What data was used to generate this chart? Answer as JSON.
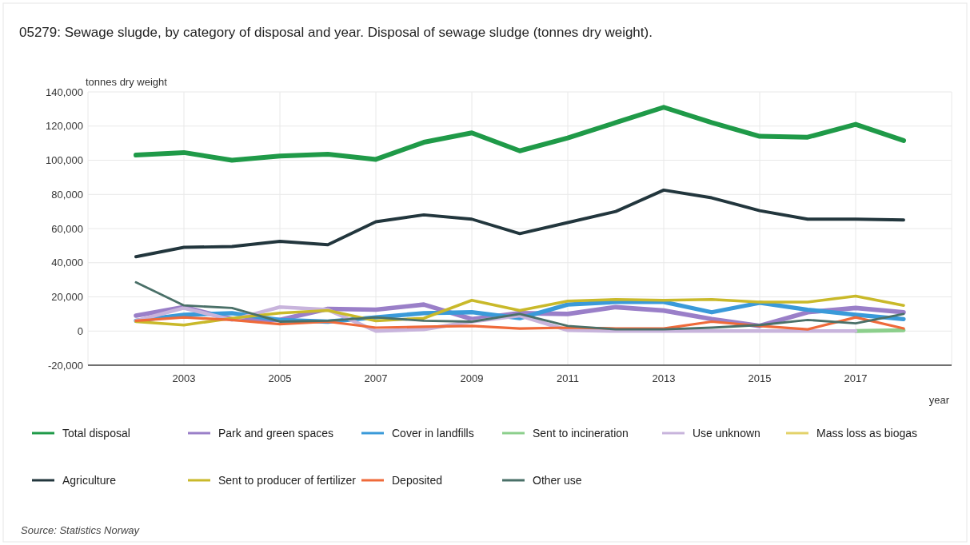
{
  "chart_data": {
    "type": "line",
    "title": "05279: Sewage slugde, by category of disposal and year. Disposal of sewage sludge (tonnes dry weight).",
    "ylabel": "tonnes dry weight",
    "xlabel": "year",
    "annotations": [
      "Source: Statistics Norway"
    ],
    "x": [
      2002,
      2003,
      2004,
      2005,
      2006,
      2007,
      2008,
      2009,
      2010,
      2011,
      2012,
      2013,
      2014,
      2015,
      2016,
      2017,
      2018
    ],
    "xlim": [
      2001,
      2019
    ],
    "xticks": [
      2003,
      2005,
      2007,
      2009,
      2011,
      2013,
      2015,
      2017
    ],
    "ylim": [
      -20000,
      140000
    ],
    "yticks": [
      {
        "value": -20000,
        "label": "-20,000"
      },
      {
        "value": 0,
        "label": "0"
      },
      {
        "value": 20000,
        "label": "20,000"
      },
      {
        "value": 40000,
        "label": "40,000"
      },
      {
        "value": 60000,
        "label": "60,000"
      },
      {
        "value": 80000,
        "label": "80,000"
      },
      {
        "value": 100000,
        "label": "100,000"
      },
      {
        "value": 120000,
        "label": "120,000"
      },
      {
        "value": 140000,
        "label": "140,000"
      }
    ],
    "grid": true,
    "legend": "bottom",
    "marker": "none",
    "line_style": "solid",
    "series": [
      {
        "name": "Total disposal",
        "color": "#1f9a48",
        "values": [
          103000,
          104500,
          100000,
          102500,
          103500,
          100500,
          110500,
          116000,
          105500,
          113000,
          122000,
          131000,
          122000,
          114000,
          113500,
          121000,
          111500
        ]
      },
      {
        "name": "Park and green spaces",
        "color": "#9a7fc8",
        "values": [
          9000,
          14000,
          7000,
          6500,
          13000,
          12500,
          15500,
          7000,
          10500,
          10000,
          14000,
          12000,
          7000,
          3000,
          11000,
          13500,
          11000
        ]
      },
      {
        "name": "Cover in landfills",
        "color": "#3a9ad9",
        "values": [
          6000,
          9500,
          10500,
          6500,
          5500,
          8000,
          10500,
          11000,
          7500,
          15500,
          17000,
          17000,
          11000,
          16500,
          12500,
          9500,
          7000
        ]
      },
      {
        "name": "Sent to incineration",
        "color": "#8ccf8c",
        "values": [
          null,
          null,
          null,
          null,
          null,
          null,
          null,
          null,
          null,
          null,
          null,
          null,
          null,
          null,
          null,
          0,
          500
        ]
      },
      {
        "name": "Use unknown",
        "color": "#c8b4dc",
        "values": [
          6000,
          13500,
          6500,
          14000,
          12500,
          0,
          1000,
          5500,
          9000,
          500,
          0,
          0,
          0,
          0,
          0,
          0,
          null
        ]
      },
      {
        "name": "Mass loss as biogas",
        "color": "#e3d26a",
        "values": [
          null,
          null,
          null,
          null,
          null,
          null,
          null,
          null,
          null,
          null,
          null,
          null,
          null,
          null,
          null,
          null,
          null
        ]
      },
      {
        "name": "Agriculture",
        "color": "#22363d",
        "values": [
          43500,
          49000,
          49500,
          52500,
          50500,
          64000,
          68000,
          65500,
          57000,
          63500,
          70000,
          82500,
          78000,
          70500,
          65500,
          65500,
          65000
        ]
      },
      {
        "name": "Sent to producer of fertilizer",
        "color": "#c9b92a",
        "values": [
          5500,
          3500,
          7500,
          10500,
          12000,
          6000,
          7500,
          18000,
          12000,
          17500,
          18500,
          18000,
          18500,
          17000,
          17000,
          20500,
          15000
        ]
      },
      {
        "name": "Deposited",
        "color": "#ef6a3a",
        "values": [
          6000,
          8000,
          6500,
          4000,
          5500,
          2000,
          2500,
          3000,
          1500,
          2000,
          1500,
          1500,
          5500,
          3000,
          1000,
          8000,
          1500
        ]
      },
      {
        "name": "Other use",
        "color": "#4a7068",
        "values": [
          28500,
          15000,
          13500,
          5500,
          6000,
          8000,
          6000,
          5500,
          10000,
          3000,
          1000,
          1000,
          2000,
          3500,
          6500,
          4500,
          10000
        ]
      }
    ]
  }
}
